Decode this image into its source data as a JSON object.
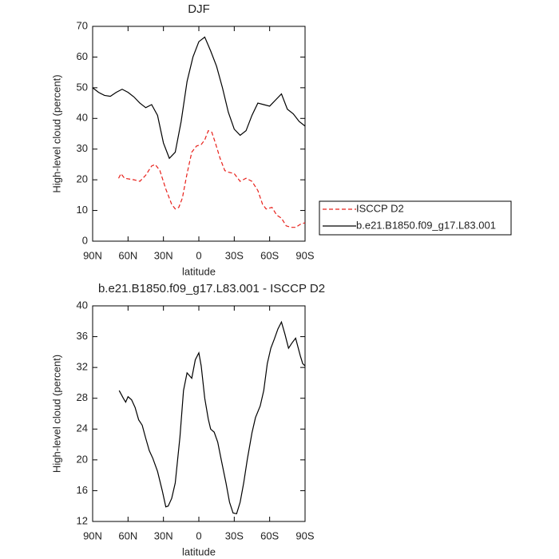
{
  "chart_data": [
    {
      "type": "line",
      "title": "DJF",
      "xlabel": "latitude",
      "ylabel": "High-level cloud (percent)",
      "xlim": [
        90,
        -90
      ],
      "xticks": [
        {
          "value": 90,
          "label": "90N"
        },
        {
          "value": 60,
          "label": "60N"
        },
        {
          "value": 30,
          "label": "30N"
        },
        0,
        {
          "value": -30,
          "label": "30S"
        },
        {
          "value": -60,
          "label": "60S"
        },
        {
          "value": -90,
          "label": "90S"
        }
      ],
      "ylim": [
        0,
        70
      ],
      "yticks": [
        0,
        10,
        20,
        30,
        40,
        50,
        60,
        70
      ],
      "legend": "right",
      "series": [
        {
          "name": "ISCCP D2",
          "color": "#e8201a",
          "dashed": true,
          "x": [
            68,
            66,
            63,
            55,
            50,
            45,
            40,
            37,
            33,
            28,
            23,
            20,
            17,
            14,
            10,
            6,
            2,
            -2,
            -5,
            -8,
            -11,
            -14,
            -18,
            -22,
            -25,
            -30,
            -35,
            -40,
            -45,
            -50,
            -54,
            -57,
            -62,
            -66,
            -70,
            -74,
            -78,
            -82,
            -86,
            -90
          ],
          "values": [
            20.5,
            22,
            20.5,
            20,
            19.5,
            21.5,
            24.5,
            25,
            23,
            17,
            12,
            10.5,
            11,
            14,
            22,
            29,
            31,
            31.5,
            33,
            36,
            35.5,
            32,
            27,
            23,
            22.5,
            22,
            19.5,
            20.5,
            19.5,
            16.5,
            12,
            10.5,
            11,
            8.5,
            7.5,
            5,
            4.5,
            4.5,
            5.5,
            6
          ]
        },
        {
          "name": "b.e21.B1850.f09_g17.L83.001",
          "color": "#000000",
          "dashed": false,
          "x": [
            90,
            85,
            80,
            75,
            70,
            65,
            60,
            55,
            50,
            45,
            40,
            35,
            30,
            25,
            20,
            15,
            10,
            5,
            0,
            -5,
            -10,
            -15,
            -20,
            -25,
            -30,
            -35,
            -40,
            -45,
            -50,
            -55,
            -60,
            -65,
            -70,
            -75,
            -80,
            -85,
            -90
          ],
          "values": [
            50,
            48.5,
            47.5,
            47.2,
            48.5,
            49.5,
            48.5,
            47,
            45,
            43.5,
            44.5,
            41,
            32,
            27,
            29,
            39,
            52,
            60,
            65,
            66.5,
            62,
            57,
            50,
            42,
            36.5,
            34.5,
            36,
            41,
            45,
            44.5,
            44,
            46,
            48,
            43,
            41.5,
            39,
            37.5
          ]
        }
      ]
    },
    {
      "type": "line",
      "title": "b.e21.B1850.f09_g17.L83.001 - ISCCP D2",
      "xlabel": "latitude",
      "ylabel": "High-level cloud (percent)",
      "xlim": [
        90,
        -90
      ],
      "xticks": [
        {
          "value": 90,
          "label": "90N"
        },
        {
          "value": 60,
          "label": "60N"
        },
        {
          "value": 30,
          "label": "30N"
        },
        0,
        {
          "value": -30,
          "label": "30S"
        },
        {
          "value": -60,
          "label": "60S"
        },
        {
          "value": -90,
          "label": "90S"
        }
      ],
      "ylim": [
        12,
        40
      ],
      "yticks": [
        12,
        16,
        20,
        24,
        28,
        32,
        36,
        40
      ],
      "series": [
        {
          "color": "#000000",
          "dashed": false,
          "x": [
            67.5,
            64,
            62,
            60,
            57,
            54,
            51,
            48,
            45,
            42,
            39,
            35,
            31,
            28,
            26,
            23,
            20,
            16,
            13,
            10,
            6,
            3,
            0,
            -2,
            -5,
            -8,
            -10,
            -13,
            -16,
            -19,
            -23,
            -26,
            -29,
            -32,
            -35,
            -38,
            -41,
            -45,
            -48,
            -52,
            -55,
            -58,
            -61,
            -64,
            -67,
            -70,
            -73,
            -76,
            -79,
            -82,
            -86,
            -88,
            -90
          ],
          "values": [
            29,
            28,
            27.5,
            28.2,
            27.8,
            26.8,
            25.2,
            24.5,
            22.8,
            21.2,
            20.2,
            18.5,
            16,
            13.9,
            14,
            15,
            17,
            23,
            29,
            31.3,
            30.6,
            33,
            33.9,
            32.2,
            28,
            25.3,
            24,
            23.6,
            22.3,
            20,
            17,
            14.5,
            13.1,
            13,
            14.5,
            17,
            20,
            23.5,
            25.5,
            27,
            29,
            32.5,
            34.5,
            35.7,
            37,
            37.9,
            36.3,
            34.5,
            35.2,
            35.8,
            33.5,
            32.5,
            32.2
          ]
        }
      ]
    }
  ]
}
